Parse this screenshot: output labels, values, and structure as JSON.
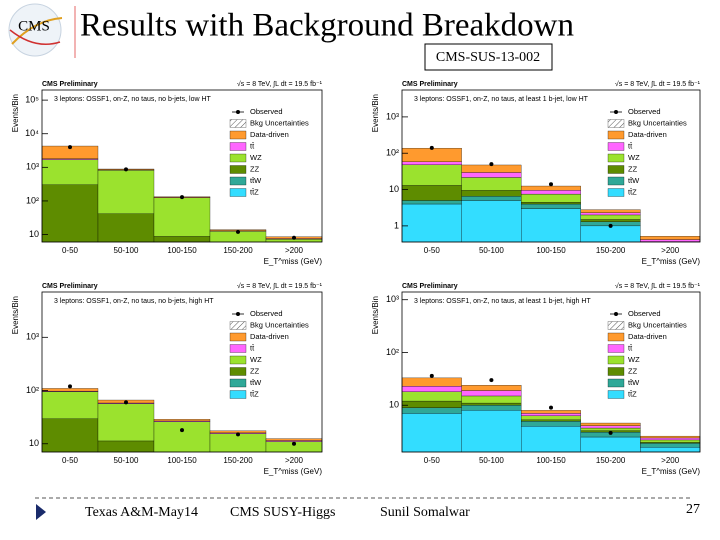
{
  "slide": {
    "title": "Results with Background Breakdown",
    "tag": "CMS-SUS-13-002",
    "logo": "CMS",
    "footer": [
      "Texas A&M-May14",
      "CMS SUSY-Higgs",
      "Sunil Somalwar"
    ],
    "page": "27"
  },
  "chart_data": [
    {
      "type": "bar",
      "stacked": true,
      "log_scale": true,
      "experiment": "CMS Preliminary",
      "energy": "√s = 8 TeV, ∫L dt = 19.5 fb⁻¹",
      "subtitle": "3 leptons: OSSF1, on-Z, no taus, no b-jets, low HT",
      "y_label": "Events/Bin",
      "x_label": "E_T^miss (GeV)",
      "categories": [
        "0-50",
        "50-100",
        "100-150",
        "150-200",
        ">200"
      ],
      "ylim": [
        6,
        200000
      ],
      "yticks": [
        10,
        {
          "value": 100,
          "label": "10²"
        },
        {
          "value": 1000,
          "label": "10³"
        },
        {
          "value": 10000,
          "label": "10⁴"
        },
        {
          "value": 100000,
          "label": "10⁵"
        }
      ],
      "observed": {
        "name": "Observed",
        "values": [
          4000,
          870,
          130,
          12,
          8
        ]
      },
      "uncertainty_label": "Bkg Uncertainties",
      "series": [
        {
          "name": "Data-driven",
          "color": "#ff9a2e",
          "values": [
            2500,
            50,
            7,
            1,
            1
          ]
        },
        {
          "name": "tt̄",
          "color": "#ff66ff",
          "values": [
            100,
            20,
            3,
            0.5,
            0.3
          ]
        },
        {
          "name": "WZ",
          "color": "#9be22e",
          "values": [
            1400,
            780,
            115,
            11,
            6
          ]
        },
        {
          "name": "ZZ",
          "color": "#5e8c00",
          "values": [
            300,
            40,
            8,
            1,
            1
          ]
        },
        {
          "name": "tt̄W",
          "color": "#2fa898",
          "values": [
            1,
            0.5,
            0.3,
            0.2,
            0.1
          ]
        },
        {
          "name": "tt̄Z",
          "color": "#33ddff",
          "values": [
            2,
            1,
            0.5,
            0.3,
            0.2
          ]
        }
      ]
    },
    {
      "type": "bar",
      "stacked": true,
      "log_scale": true,
      "experiment": "CMS Preliminary",
      "energy": "√s = 8 TeV, ∫L dt = 19.5 fb⁻¹",
      "subtitle": "3 leptons: OSSF1, on-Z, no taus, at least 1 b-jet, low HT",
      "y_label": "Events/Bin",
      "x_label": "E_T^miss (GeV)",
      "categories": [
        "0-50",
        "50-100",
        "100-150",
        "150-200",
        ">200"
      ],
      "ylim": [
        0.36,
        5500
      ],
      "yticks": [
        1,
        10,
        {
          "value": 100,
          "label": "10²"
        },
        {
          "value": 1000,
          "label": "10³"
        }
      ],
      "observed": {
        "name": "Observed",
        "values": [
          140,
          50,
          14,
          1,
          null
        ]
      },
      "uncertainty_label": "Bkg Uncertainties",
      "series": [
        {
          "name": "Data-driven",
          "color": "#ff9a2e",
          "values": [
            80,
            18,
            3,
            0.5,
            0.1
          ]
        },
        {
          "name": "tt̄",
          "color": "#ff66ff",
          "values": [
            10,
            8,
            2,
            0.3,
            0.05
          ]
        },
        {
          "name": "WZ",
          "color": "#9be22e",
          "values": [
            35,
            12,
            3,
            0.5,
            0.1
          ]
        },
        {
          "name": "ZZ",
          "color": "#5e8c00",
          "values": [
            8,
            3,
            0.5,
            0.2,
            0.02
          ]
        },
        {
          "name": "tt̄W",
          "color": "#2fa898",
          "values": [
            1,
            1.5,
            1,
            0.3,
            0.05
          ]
        },
        {
          "name": "tt̄Z",
          "color": "#33ddff",
          "values": [
            4,
            5,
            3,
            1,
            0.2
          ]
        }
      ]
    },
    {
      "type": "bar",
      "stacked": true,
      "log_scale": true,
      "experiment": "CMS Preliminary",
      "energy": "√s = 8 TeV, ∫L dt = 19.5 fb⁻¹",
      "subtitle": "3 leptons: OSSF1, on-Z, no taus, no b-jets, high HT",
      "y_label": "Events/Bin",
      "x_label": "E_T^miss (GeV)",
      "categories": [
        "0-50",
        "50-100",
        "100-150",
        "150-200",
        ">200"
      ],
      "ylim": [
        7,
        7100
      ],
      "yticks": [
        10,
        {
          "value": 100,
          "label": "10²"
        },
        {
          "value": 1000,
          "label": "10³"
        }
      ],
      "observed": {
        "name": "Observed",
        "values": [
          120,
          60,
          18,
          15,
          10
        ]
      },
      "uncertainty_label": "Bkg Uncertainties",
      "series": [
        {
          "name": "Data-driven",
          "color": "#ff9a2e",
          "values": [
            12,
            8,
            2,
            1.5,
            1
          ]
        },
        {
          "name": "tt̄",
          "color": "#ff66ff",
          "values": [
            3,
            2,
            1,
            0.5,
            0.5
          ]
        },
        {
          "name": "WZ",
          "color": "#9be22e",
          "values": [
            65,
            45,
            22,
            13,
            9
          ]
        },
        {
          "name": "ZZ",
          "color": "#5e8c00",
          "values": [
            28,
            10,
            3,
            2,
            1.5
          ]
        },
        {
          "name": "tt̄W",
          "color": "#2fa898",
          "values": [
            0.5,
            0.5,
            0.3,
            0.2,
            0.2
          ]
        },
        {
          "name": "tt̄Z",
          "color": "#33ddff",
          "values": [
            1,
            0.8,
            0.5,
            0.3,
            0.3
          ]
        }
      ]
    },
    {
      "type": "bar",
      "stacked": true,
      "log_scale": true,
      "experiment": "CMS Preliminary",
      "energy": "√s = 8 TeV, ∫L dt = 19.5 fb⁻¹",
      "subtitle": "3 leptons: OSSF1, on-Z, no taus, at least 1 b-jet, high HT",
      "y_label": "Events/Bin",
      "x_label": "E_T^miss (GeV)",
      "categories": [
        "0-50",
        "50-100",
        "100-150",
        "150-200",
        ">200"
      ],
      "ylim": [
        1.3,
        1400
      ],
      "yticks": [
        10,
        {
          "value": 100,
          "label": "10²"
        },
        {
          "value": 1000,
          "label": "10³"
        }
      ],
      "observed": {
        "name": "Observed",
        "values": [
          36,
          30,
          9,
          3,
          null
        ]
      },
      "uncertainty_label": "Bkg Uncertainties",
      "series": [
        {
          "name": "Data-driven",
          "color": "#ff9a2e",
          "values": [
            10,
            5,
            1,
            0.5,
            0.2
          ]
        },
        {
          "name": "tt̄",
          "color": "#ff66ff",
          "values": [
            5,
            4,
            0.7,
            0.4,
            0.2
          ]
        },
        {
          "name": "WZ",
          "color": "#9be22e",
          "values": [
            6,
            4,
            1,
            0.4,
            0.2
          ]
        },
        {
          "name": "ZZ",
          "color": "#5e8c00",
          "values": [
            3,
            1,
            0.3,
            0.2,
            0.1
          ]
        },
        {
          "name": "tt̄W",
          "color": "#2fa898",
          "values": [
            2,
            2,
            1,
            0.6,
            0.3
          ]
        },
        {
          "name": "tt̄Z",
          "color": "#33ddff",
          "values": [
            7,
            8,
            4,
            2.5,
            1.6
          ]
        }
      ]
    }
  ]
}
